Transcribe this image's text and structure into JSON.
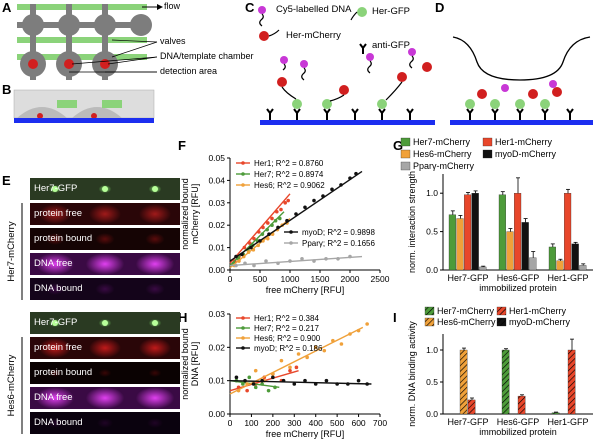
{
  "panels": {
    "A": "A",
    "B": "B",
    "C": "C",
    "D": "D",
    "E": "E",
    "F": "F",
    "G": "G",
    "H": "H",
    "I": "I"
  },
  "panelA": {
    "labels": [
      "flow",
      "valves",
      "DNA/template chamber",
      "detection area"
    ]
  },
  "panelC": {
    "legend": [
      "Cy5-labelled DNA",
      "Her-GFP",
      "Her-mCherry",
      "anti-GFP"
    ]
  },
  "panelE": {
    "groups": [
      {
        "name": "Her7-mCherry",
        "rows": [
          "Her7-GFP",
          "protein free",
          "protein bound",
          "DNA free",
          "DNA bound"
        ]
      },
      {
        "name": "Hes6-mCherry",
        "rows": [
          "Her7-GFP",
          "protein free",
          "protein bound",
          "DNA free",
          "DNA bound"
        ]
      }
    ]
  },
  "colors": {
    "her7": "#4d9b3a",
    "her1": "#e8472b",
    "hes6": "#f0a13a",
    "myod": "#111111",
    "ppar": "#a6a6a6",
    "blue": "#1c2ef0",
    "green": "#8bd37a",
    "gray": "#7d7d7d",
    "red": "#d11f1f",
    "magenta": "#c838d6"
  },
  "chart_data": [
    {
      "id": "F",
      "type": "scatter",
      "ylabel": "normalized bound\nmCherry [RFU]",
      "xlabel": "free mCherry [RFU]",
      "xlim": [
        0,
        2500
      ],
      "ylim": [
        0,
        0.05
      ],
      "xticks": [
        "0",
        "500",
        "1000",
        "1500",
        "2000",
        "2500"
      ],
      "yticks": [
        "0.00",
        "0.01",
        "0.02",
        "0.03",
        "0.04",
        "0.05"
      ],
      "legend_top": [
        "Her1; R^2 = 0.8760",
        "Her7; R^2 = 0.8974",
        "Hes6; R^2 = 0.9062"
      ],
      "legend_bottom": [
        "myoD; R^2 = 0.9898",
        "Pparγ; R^2 = 0.1656"
      ],
      "series": [
        {
          "name": "Her1",
          "color": "#e8472b",
          "fit": [
            [
              0,
              0.003
            ],
            [
              1000,
              0.034
            ]
          ],
          "points": [
            [
              80,
              0.004
            ],
            [
              150,
              0.006
            ],
            [
              240,
              0.01
            ],
            [
              330,
              0.012
            ],
            [
              400,
              0.014
            ],
            [
              480,
              0.017
            ],
            [
              550,
              0.019
            ],
            [
              630,
              0.021
            ],
            [
              700,
              0.023
            ],
            [
              780,
              0.026
            ],
            [
              850,
              0.027
            ],
            [
              920,
              0.03
            ],
            [
              970,
              0.031
            ]
          ]
        },
        {
          "name": "Her7",
          "color": "#4d9b3a",
          "fit": [
            [
              0,
              0.002
            ],
            [
              900,
              0.026
            ]
          ],
          "points": [
            [
              60,
              0.003
            ],
            [
              140,
              0.005
            ],
            [
              220,
              0.007
            ],
            [
              300,
              0.009
            ],
            [
              380,
              0.011
            ],
            [
              460,
              0.013
            ],
            [
              540,
              0.016
            ],
            [
              620,
              0.018
            ],
            [
              700,
              0.02
            ],
            [
              760,
              0.022
            ],
            [
              830,
              0.023
            ]
          ]
        },
        {
          "name": "Hes6",
          "color": "#f0a13a",
          "fit": [
            [
              0,
              0.001
            ],
            [
              1000,
              0.023
            ]
          ],
          "points": [
            [
              70,
              0.002
            ],
            [
              150,
              0.004
            ],
            [
              230,
              0.006
            ],
            [
              310,
              0.008
            ],
            [
              390,
              0.009
            ],
            [
              470,
              0.011
            ],
            [
              550,
              0.013
            ],
            [
              630,
              0.014
            ],
            [
              710,
              0.016
            ],
            [
              790,
              0.018
            ],
            [
              870,
              0.02
            ],
            [
              950,
              0.021
            ]
          ]
        },
        {
          "name": "myoD",
          "color": "#111111",
          "fit": [
            [
              0,
              0.004
            ],
            [
              2200,
              0.044
            ]
          ],
          "points": [
            [
              100,
              0.006
            ],
            [
              200,
              0.007
            ],
            [
              350,
              0.01
            ],
            [
              500,
              0.013
            ],
            [
              650,
              0.016
            ],
            [
              800,
              0.019
            ],
            [
              950,
              0.022
            ],
            [
              1100,
              0.025
            ],
            [
              1250,
              0.028
            ],
            [
              1400,
              0.031
            ],
            [
              1550,
              0.033
            ],
            [
              1700,
              0.036
            ],
            [
              1850,
              0.038
            ],
            [
              2000,
              0.041
            ],
            [
              2100,
              0.043
            ]
          ]
        },
        {
          "name": "Pparγ",
          "color": "#a6a6a6",
          "fit": [
            [
              0,
              0.002
            ],
            [
              2200,
              0.006
            ]
          ],
          "points": [
            [
              100,
              0.002
            ],
            [
              250,
              0.003
            ],
            [
              400,
              0.002
            ],
            [
              600,
              0.004
            ],
            [
              800,
              0.003
            ],
            [
              1000,
              0.004
            ],
            [
              1200,
              0.005
            ],
            [
              1400,
              0.004
            ],
            [
              1600,
              0.005
            ],
            [
              1800,
              0.005
            ],
            [
              2000,
              0.006
            ]
          ]
        }
      ]
    },
    {
      "id": "H",
      "type": "scatter",
      "ylabel": "normalized bound\nDNA [RFU]",
      "xlabel": "free mCherry [RFU]",
      "xlim": [
        0,
        700
      ],
      "ylim": [
        0,
        0.03
      ],
      "xticks": [
        "0",
        "100",
        "200",
        "300",
        "400",
        "500",
        "600",
        "700"
      ],
      "yticks": [
        "0.00",
        "0.01",
        "0.02",
        "0.03"
      ],
      "legend": [
        "Her1; R^2 = 0.384",
        "Her7; R^2 = 0.217",
        "Hes6; R^2 = 0.900",
        "myoD; R^2 = 0.186"
      ],
      "series": [
        {
          "name": "Her1",
          "color": "#e8472b",
          "fit": [
            [
              0,
              0.007
            ],
            [
              320,
              0.013
            ]
          ],
          "points": [
            [
              40,
              0.008
            ],
            [
              80,
              0.007
            ],
            [
              120,
              0.009
            ],
            [
              160,
              0.011
            ],
            [
              200,
              0.012
            ],
            [
              240,
              0.01
            ],
            [
              280,
              0.013
            ],
            [
              310,
              0.014
            ]
          ]
        },
        {
          "name": "Her7",
          "color": "#4d9b3a",
          "fit": [
            [
              0,
              0.01
            ],
            [
              230,
              0.008
            ]
          ],
          "points": [
            [
              30,
              0.01
            ],
            [
              60,
              0.009
            ],
            [
              90,
              0.011
            ],
            [
              120,
              0.008
            ],
            [
              150,
              0.009
            ],
            [
              180,
              0.007
            ],
            [
              210,
              0.008
            ]
          ]
        },
        {
          "name": "Hes6",
          "color": "#f0a13a",
          "fit": [
            [
              0,
              0.006
            ],
            [
              620,
              0.026
            ]
          ],
          "points": [
            [
              40,
              0.007
            ],
            [
              80,
              0.009
            ],
            [
              120,
              0.013
            ],
            [
              160,
              0.01
            ],
            [
              200,
              0.012
            ],
            [
              240,
              0.016
            ],
            [
              280,
              0.014
            ],
            [
              320,
              0.018
            ],
            [
              360,
              0.017
            ],
            [
              400,
              0.02
            ],
            [
              440,
              0.019
            ],
            [
              480,
              0.022
            ],
            [
              520,
              0.021
            ],
            [
              560,
              0.024
            ],
            [
              600,
              0.025
            ],
            [
              640,
              0.027
            ]
          ]
        },
        {
          "name": "myoD",
          "color": "#111111",
          "fit": [
            [
              0,
              0.01
            ],
            [
              660,
              0.009
            ]
          ],
          "points": [
            [
              30,
              0.011
            ],
            [
              70,
              0.01
            ],
            [
              110,
              0.009
            ],
            [
              150,
              0.01
            ],
            [
              200,
              0.011
            ],
            [
              250,
              0.01
            ],
            [
              300,
              0.009
            ],
            [
              350,
              0.01
            ],
            [
              400,
              0.009
            ],
            [
              450,
              0.01
            ],
            [
              500,
              0.009
            ],
            [
              550,
              0.009
            ],
            [
              600,
              0.01
            ],
            [
              640,
              0.009
            ]
          ]
        }
      ]
    },
    {
      "id": "G",
      "type": "bar",
      "ylabel": "norm. interaction strength",
      "xlabel": "immobilized protein",
      "ylim": [
        0,
        1.25
      ],
      "yticks": [
        "0.0",
        "0.5",
        "1.0"
      ],
      "categories": [
        "Her7-GFP",
        "Hes6-GFP",
        "Her1-GFP"
      ],
      "legend": [
        "Her7-mCherry",
        "Her1-mCherry",
        "Hes6-mCherry",
        "myoD-mCherry",
        "Pparγ-mCherry"
      ],
      "series": [
        {
          "name": "Her7-mCherry",
          "color": "#4d9b3a",
          "values": [
            0.72,
            0.98,
            0.3
          ],
          "err": [
            0.05,
            0.04,
            0.04
          ]
        },
        {
          "name": "Hes6-mCherry",
          "color": "#f0a13a",
          "values": [
            0.67,
            0.5,
            0.12
          ],
          "err": [
            0.04,
            0.04,
            0.02
          ]
        },
        {
          "name": "Her1-mCherry",
          "color": "#e8472b",
          "values": [
            0.98,
            1.0,
            1.0
          ],
          "err": [
            0.03,
            0.2,
            0.05
          ]
        },
        {
          "name": "myoD-mCherry",
          "color": "#111111",
          "values": [
            1.0,
            0.62,
            0.34
          ],
          "err": [
            0.03,
            0.05,
            0.02
          ]
        },
        {
          "name": "Pparγ-mCherry",
          "color": "#a6a6a6",
          "values": [
            0.04,
            0.16,
            0.06
          ],
          "err": [
            0.01,
            0.08,
            0.02
          ]
        }
      ]
    },
    {
      "id": "I",
      "type": "bar",
      "ylabel": "norm. DNA binding activity",
      "xlabel": "immobilized protein",
      "ylim": [
        0,
        1.25
      ],
      "yticks": [
        "0.0",
        "0.5",
        "1.0"
      ],
      "categories": [
        "Her7-GFP",
        "Hes6-GFP",
        "Her1-GFP"
      ],
      "legend": [
        "Her7-mCherry",
        "Her1-mCherry",
        "Hes6-mCherry",
        "myoD-mCherry"
      ],
      "series": [
        {
          "name": "Her7-mCherry",
          "color": "#4d9b3a",
          "values": [
            0,
            1.0,
            0.02
          ],
          "err": [
            0,
            0.02,
            0.01
          ]
        },
        {
          "name": "Hes6-mCherry",
          "color": "#f0a13a",
          "values": [
            1.0,
            0,
            0
          ],
          "err": [
            0.03,
            0,
            0
          ]
        },
        {
          "name": "Her1-mCherry",
          "color": "#e8472b",
          "values": [
            0.22,
            0.28,
            1.0
          ],
          "err": [
            0.03,
            0.02,
            0.17
          ]
        },
        {
          "name": "myoD-mCherry",
          "color": "#111111",
          "values": [
            0,
            0,
            0
          ],
          "err": [
            0,
            0,
            0
          ]
        }
      ]
    }
  ]
}
